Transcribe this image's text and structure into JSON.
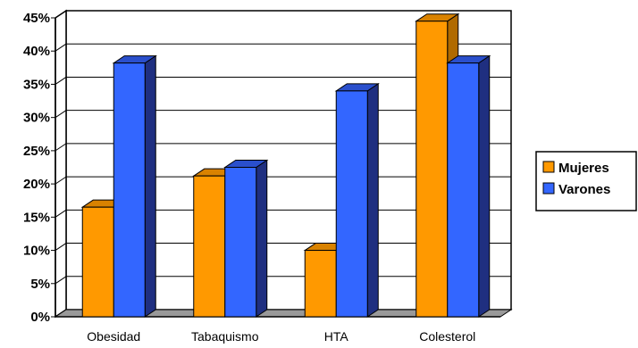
{
  "chart_data": {
    "type": "bar",
    "categories": [
      "Obesidad",
      "Tabaquismo",
      "HTA",
      "Colesterol"
    ],
    "series": [
      {
        "name": "Mujeres",
        "values": [
          16.5,
          21.2,
          10.0,
          44.5
        ],
        "color": "#FF9900",
        "side": "#B06A00",
        "top": "#D98200"
      },
      {
        "name": "Varones",
        "values": [
          38.2,
          22.5,
          34.0,
          38.2
        ],
        "color": "#3366FF",
        "side": "#1F2F80",
        "top": "#2A4FCC"
      }
    ],
    "yticks": [
      "0%",
      "5%",
      "10%",
      "15%",
      "20%",
      "25%",
      "30%",
      "35%",
      "40%",
      "45%"
    ],
    "ylim": [
      0,
      45
    ],
    "grid": true,
    "legend_position": "right",
    "is_3d": true
  }
}
